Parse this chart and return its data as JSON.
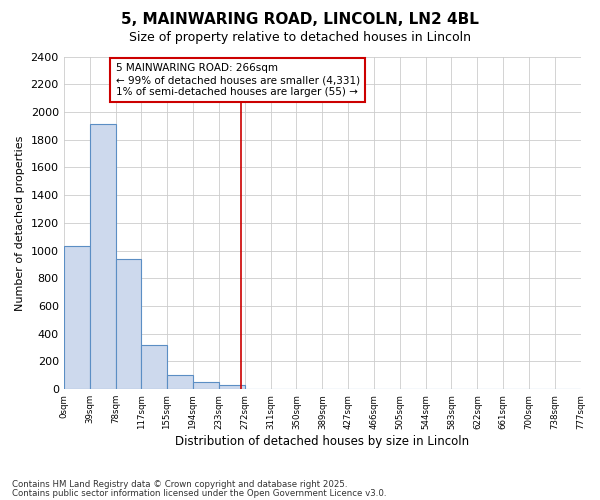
{
  "title": "5, MAINWARING ROAD, LINCOLN, LN2 4BL",
  "subtitle": "Size of property relative to detached houses in Lincoln",
  "xlabel": "Distribution of detached houses by size in Lincoln",
  "ylabel": "Number of detached properties",
  "bar_color": "#cdd9ed",
  "bar_edge_color": "#5b8ec4",
  "bar_left_edges": [
    0,
    39,
    78,
    117,
    155,
    194,
    233,
    272,
    311,
    350,
    389,
    427,
    466,
    505,
    544,
    583,
    622,
    661,
    700,
    738
  ],
  "bar_widths": [
    39,
    39,
    39,
    38,
    39,
    39,
    39,
    39,
    39,
    39,
    38,
    39,
    39,
    39,
    39,
    39,
    39,
    39,
    38,
    39
  ],
  "bar_heights": [
    1030,
    1910,
    940,
    320,
    105,
    50,
    30,
    5,
    0,
    0,
    0,
    0,
    0,
    0,
    0,
    0,
    0,
    0,
    0,
    0
  ],
  "tick_labels": [
    "0sqm",
    "39sqm",
    "78sqm",
    "117sqm",
    "155sqm",
    "194sqm",
    "233sqm",
    "272sqm",
    "311sqm",
    "350sqm",
    "389sqm",
    "427sqm",
    "466sqm",
    "505sqm",
    "544sqm",
    "583sqm",
    "622sqm",
    "661sqm",
    "700sqm",
    "738sqm",
    "777sqm"
  ],
  "tick_positions": [
    0,
    39,
    78,
    117,
    155,
    194,
    233,
    272,
    311,
    350,
    389,
    427,
    466,
    505,
    544,
    583,
    622,
    661,
    700,
    738,
    777
  ],
  "ylim": [
    0,
    2400
  ],
  "yticks": [
    0,
    200,
    400,
    600,
    800,
    1000,
    1200,
    1400,
    1600,
    1800,
    2000,
    2200,
    2400
  ],
  "vline_x": 266,
  "vline_color": "#cc0000",
  "annotation_title": "5 MAINWARING ROAD: 266sqm",
  "annotation_line1": "← 99% of detached houses are smaller (4,331)",
  "annotation_line2": "1% of semi-detached houses are larger (55) →",
  "annotation_box_color": "#cc0000",
  "background_color": "#ffffff",
  "plot_bg_color": "#ffffff",
  "grid_color": "#cccccc",
  "footer1": "Contains HM Land Registry data © Crown copyright and database right 2025.",
  "footer2": "Contains public sector information licensed under the Open Government Licence v3.0."
}
